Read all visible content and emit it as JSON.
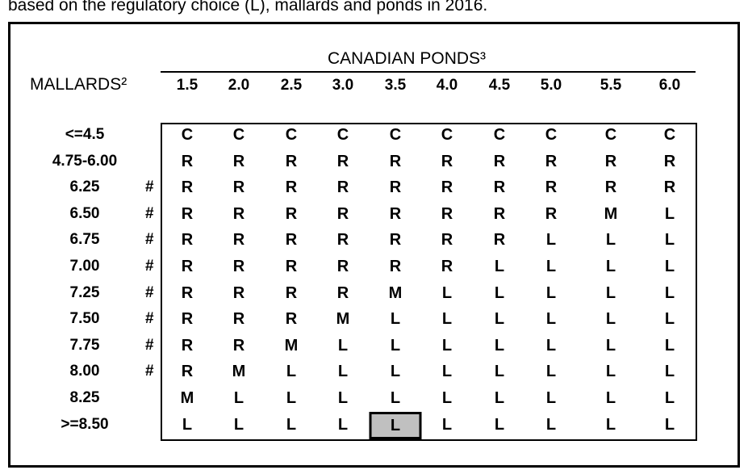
{
  "caption": "based on the regulatory choice (L), mallards and ponds in 2016.",
  "ponds_title": "CANADIAN PONDS³",
  "mallards_title": "MALLARDS²",
  "columns": [
    "1.5",
    "2.0",
    "2.5",
    "3.0",
    "3.5",
    "4.0",
    "4.5",
    "5.0",
    "5.5",
    "6.0"
  ],
  "rows": [
    {
      "label": "<=4.5",
      "mark": "",
      "cells": [
        "C",
        "C",
        "C",
        "C",
        "C",
        "C",
        "C",
        "C",
        "C",
        "C"
      ]
    },
    {
      "label": "4.75-6.00",
      "mark": "",
      "cells": [
        "R",
        "R",
        "R",
        "R",
        "R",
        "R",
        "R",
        "R",
        "R",
        "R"
      ]
    },
    {
      "label": "6.25",
      "mark": "#",
      "cells": [
        "R",
        "R",
        "R",
        "R",
        "R",
        "R",
        "R",
        "R",
        "R",
        "R"
      ]
    },
    {
      "label": "6.50",
      "mark": "#",
      "cells": [
        "R",
        "R",
        "R",
        "R",
        "R",
        "R",
        "R",
        "R",
        "M",
        "L"
      ]
    },
    {
      "label": "6.75",
      "mark": "#",
      "cells": [
        "R",
        "R",
        "R",
        "R",
        "R",
        "R",
        "R",
        "L",
        "L",
        "L"
      ]
    },
    {
      "label": "7.00",
      "mark": "#",
      "cells": [
        "R",
        "R",
        "R",
        "R",
        "R",
        "R",
        "L",
        "L",
        "L",
        "L"
      ]
    },
    {
      "label": "7.25",
      "mark": "#",
      "cells": [
        "R",
        "R",
        "R",
        "R",
        "M",
        "L",
        "L",
        "L",
        "L",
        "L"
      ]
    },
    {
      "label": "7.50",
      "mark": "#",
      "cells": [
        "R",
        "R",
        "R",
        "M",
        "L",
        "L",
        "L",
        "L",
        "L",
        "L"
      ]
    },
    {
      "label": "7.75",
      "mark": "#",
      "cells": [
        "R",
        "R",
        "M",
        "L",
        "L",
        "L",
        "L",
        "L",
        "L",
        "L"
      ]
    },
    {
      "label": "8.00",
      "mark": "#",
      "cells": [
        "R",
        "M",
        "L",
        "L",
        "L",
        "L",
        "L",
        "L",
        "L",
        "L"
      ]
    },
    {
      "label": "8.25",
      "mark": "",
      "cells": [
        "M",
        "L",
        "L",
        "L",
        "L",
        "L",
        "L",
        "L",
        "L",
        "L"
      ]
    },
    {
      "label": ">=8.50",
      "mark": "",
      "cells": [
        "L",
        "L",
        "L",
        "L",
        "L",
        "L",
        "L",
        "L",
        "L",
        "L"
      ]
    }
  ],
  "highlighted_cell": {
    "row": 11,
    "col": 4
  },
  "highlight_color": "#c0c0c0"
}
